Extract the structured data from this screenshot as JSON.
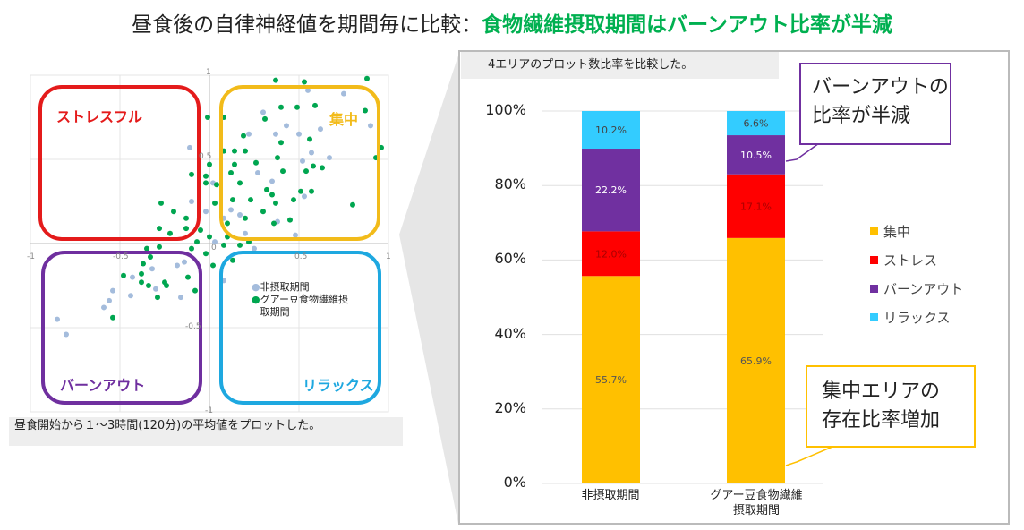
{
  "title": {
    "prefix": "昼食後の自律神経値を期間毎に比較：",
    "highlight": "食物繊維摂取期間はバーンアウト比率が半減"
  },
  "colors": {
    "highlight": "#00b050",
    "concentration": "#ffc000",
    "stress": "#ff0000",
    "burnout": "#7030a0",
    "relax": "#33ccff",
    "non_intake": "#a4bcdc",
    "intake": "#00a650"
  },
  "scatter_caption": "昼食開始から１～3時間(120分)の平均値をプロットした。",
  "bar_caption": "4エリアのプロット数比率を比較した。",
  "callouts": {
    "burnout": [
      "バーンアウトの",
      "比率が半減"
    ],
    "concentration": [
      "集中エリアの",
      "存在比率増加"
    ]
  },
  "chart_data": [
    {
      "type": "scatter",
      "xlim": [
        -1,
        1
      ],
      "ylim": [
        -1,
        1
      ],
      "xticks": [
        "-1",
        "-0.5",
        "0",
        "0.5",
        "1"
      ],
      "yticks": [
        "1",
        "0.5",
        "0",
        "-0.5",
        "-1"
      ],
      "grid": true,
      "legend_position": "inside-bottom-right",
      "quadrants": {
        "top_left": "ストレスフル",
        "top_right": "集中",
        "bottom_left": "バーンアウト",
        "bottom_right": "リラックス"
      },
      "series": [
        {
          "name": "非摂取期間",
          "points": [
            [
              -0.85,
              -0.45
            ],
            [
              -0.8,
              -0.54
            ],
            [
              -0.59,
              -0.38
            ],
            [
              -0.56,
              -0.34
            ],
            [
              -0.54,
              -0.28
            ],
            [
              -0.44,
              -0.31
            ],
            [
              -0.43,
              -0.2
            ],
            [
              -0.32,
              -0.15
            ],
            [
              -0.3,
              -0.27
            ],
            [
              -0.16,
              -0.32
            ],
            [
              -0.18,
              -0.13
            ],
            [
              -0.11,
              0.57
            ],
            [
              -0.1,
              0.25
            ],
            [
              -0.02,
              0.19
            ],
            [
              0.03,
              0.01
            ],
            [
              0.08,
              0.15
            ],
            [
              0.17,
              0.17
            ],
            [
              0.2,
              0.06
            ],
            [
              0.27,
              0.42
            ],
            [
              0.35,
              0.37
            ],
            [
              0.38,
              0.13
            ],
            [
              0.43,
              0.7
            ],
            [
              0.5,
              0.65
            ],
            [
              0.52,
              0.49
            ],
            [
              0.53,
              0.28
            ],
            [
              0.57,
              0.54
            ],
            [
              0.62,
              0.68
            ],
            [
              0.67,
              0.51
            ],
            [
              0.75,
              0.89
            ],
            [
              0.9,
              0.7
            ],
            [
              0.55,
              0.91
            ],
            [
              0.3,
              0.78
            ],
            [
              0.48,
              0.05
            ],
            [
              0.25,
              -0.03
            ],
            [
              0.08,
              -0.22
            ],
            [
              -0.14,
              -0.11
            ],
            [
              0.22,
              0.65
            ],
            [
              0.37,
              0.65
            ],
            [
              0.12,
              0.2
            ],
            [
              0.02,
              0.36
            ]
          ]
        },
        {
          "name": "グアー豆食物繊維摂取期間",
          "points": [
            [
              0.37,
              0.97
            ],
            [
              0.53,
              0.96
            ],
            [
              0.88,
              0.98
            ],
            [
              0.4,
              0.81
            ],
            [
              0.49,
              0.81
            ],
            [
              0.59,
              0.82
            ],
            [
              0.87,
              0.79
            ],
            [
              -0.01,
              0.75
            ],
            [
              0.08,
              0.75
            ],
            [
              0.31,
              0.74
            ],
            [
              0.19,
              0.64
            ],
            [
              0.08,
              0.55
            ],
            [
              0.14,
              0.55
            ],
            [
              0.2,
              0.55
            ],
            [
              0.96,
              0.57
            ],
            [
              0.93,
              0.51
            ],
            [
              0.56,
              0.62
            ],
            [
              0.4,
              0.6
            ],
            [
              0.38,
              0.51
            ],
            [
              0.26,
              0.48
            ],
            [
              0.14,
              0.47
            ],
            [
              0,
              0.47
            ],
            [
              -0.1,
              0.41
            ],
            [
              -0.02,
              0.4
            ],
            [
              0.12,
              0.42
            ],
            [
              0.41,
              0.43
            ],
            [
              0.54,
              0.43
            ],
            [
              0.58,
              0.46
            ],
            [
              0.63,
              0.45
            ],
            [
              -0.02,
              0.36
            ],
            [
              0.04,
              0.35
            ],
            [
              0.17,
              0.36
            ],
            [
              0.32,
              0.32
            ],
            [
              0.35,
              0.29
            ],
            [
              0.51,
              0.31
            ],
            [
              0.57,
              0.31
            ],
            [
              0.8,
              0.23
            ],
            [
              -0.27,
              0.24
            ],
            [
              -0.2,
              0.19
            ],
            [
              -0.13,
              0.15
            ],
            [
              0.03,
              0.24
            ],
            [
              0.13,
              0.26
            ],
            [
              0.23,
              0.26
            ],
            [
              0.37,
              0.24
            ],
            [
              0.47,
              0.26
            ],
            [
              -0.28,
              0.09
            ],
            [
              -0.22,
              0.06
            ],
            [
              -0.13,
              0.09
            ],
            [
              -0.05,
              0.08
            ],
            [
              0.1,
              0.12
            ],
            [
              0.2,
              0.15
            ],
            [
              0.3,
              0.19
            ],
            [
              0.36,
              0.12
            ],
            [
              0.45,
              0.14
            ],
            [
              -0.35,
              -0.03
            ],
            [
              -0.28,
              -0.02
            ],
            [
              -0.33,
              -0.08
            ],
            [
              -0.37,
              -0.12
            ],
            [
              -0.48,
              -0.19
            ],
            [
              -0.38,
              -0.18
            ],
            [
              -0.38,
              -0.23
            ],
            [
              -0.34,
              -0.25
            ],
            [
              -0.25,
              -0.23
            ],
            [
              -0.24,
              -0.25
            ],
            [
              -0.29,
              -0.32
            ],
            [
              -0.12,
              -0.2
            ],
            [
              -0.08,
              -0.28
            ],
            [
              -0.54,
              -0.44
            ],
            [
              -0.07,
              0.01
            ],
            [
              -0.02,
              -0.06
            ],
            [
              0.02,
              -0.13
            ],
            [
              0.08,
              -0.01
            ],
            [
              0.13,
              -0.1
            ],
            [
              0.17,
              -0.01
            ],
            [
              0.22,
              0.01
            ],
            [
              -0.1,
              -0.03
            ],
            [
              0,
              0.04
            ],
            [
              0.1,
              0.04
            ]
          ]
        }
      ]
    },
    {
      "type": "bar",
      "stacked": true,
      "categories": [
        [
          "非摂取期間"
        ],
        [
          "グアー豆食物繊維",
          "摂取期間"
        ]
      ],
      "ylim": [
        0,
        100
      ],
      "yticks": [
        "0%",
        "20%",
        "40%",
        "60%",
        "80%",
        "100%"
      ],
      "grid": true,
      "legend_position": "right",
      "series": [
        {
          "name": "集中",
          "values": [
            55.7,
            65.9
          ],
          "labels": [
            "55.7%",
            "65.9%"
          ]
        },
        {
          "name": "ストレス",
          "values": [
            12.0,
            17.1
          ],
          "labels": [
            "12.0%",
            "17.1%"
          ]
        },
        {
          "name": "バーンアウト",
          "values": [
            22.2,
            10.5
          ],
          "labels": [
            "22.2%",
            "10.5%"
          ]
        },
        {
          "name": "リラックス",
          "values": [
            10.2,
            6.6
          ],
          "labels": [
            "10.2%",
            "6.6%"
          ]
        }
      ],
      "legend_order": [
        "集中",
        "ストレス",
        "バーンアウト",
        "リラックス"
      ]
    }
  ]
}
